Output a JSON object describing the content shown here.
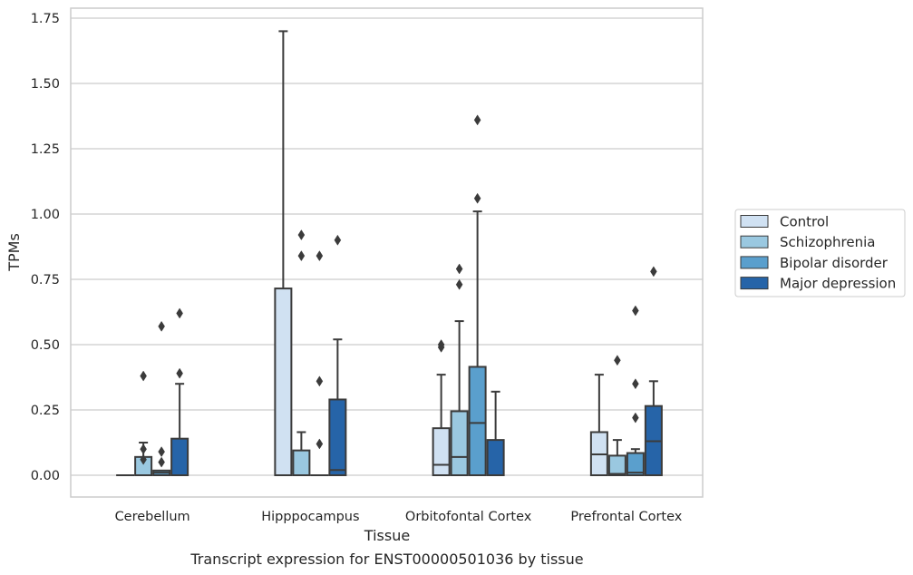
{
  "chart_data": {
    "type": "box",
    "title": "",
    "xlabel": "Tissue",
    "ylabel": "TPMs",
    "caption": "Transcript expression for ENST00000501036 by tissue",
    "ylim": [
      -0.08,
      1.78
    ],
    "yticks": [
      "0.00",
      "0.25",
      "0.50",
      "0.75",
      "1.00",
      "1.25",
      "1.50",
      "1.75"
    ],
    "ytick_values": [
      0,
      0.25,
      0.5,
      0.75,
      1.0,
      1.25,
      1.5,
      1.75
    ],
    "grid": true,
    "legend_position": "right",
    "categories": [
      "Cerebellum",
      "Hipppocampus",
      "Orbitofontal Cortex",
      "Prefrontal Cortex"
    ],
    "series": [
      {
        "name": "Control",
        "color": "#d0e1f2",
        "boxes": [
          {
            "q1": 0,
            "median": 0,
            "q3": 0,
            "whisker_low": 0,
            "whisker_high": 0,
            "outliers": []
          },
          {
            "q1": 0,
            "median": 0,
            "q3": 0.715,
            "whisker_low": 0,
            "whisker_high": 1.7,
            "outliers": []
          },
          {
            "q1": 0,
            "median": 0.04,
            "q3": 0.18,
            "whisker_low": 0,
            "whisker_high": 0.385,
            "outliers": [
              0.49,
              0.5
            ]
          },
          {
            "q1": 0,
            "median": 0.08,
            "q3": 0.165,
            "whisker_low": 0,
            "whisker_high": 0.385,
            "outliers": []
          }
        ]
      },
      {
        "name": "Schizophrenia",
        "color": "#9ac8e0",
        "boxes": [
          {
            "q1": 0,
            "median": 0,
            "q3": 0.07,
            "whisker_low": 0,
            "whisker_high": 0.125,
            "outliers": [
              0.06,
              0.1,
              0.38
            ]
          },
          {
            "q1": 0,
            "median": 0,
            "q3": 0.095,
            "whisker_low": 0,
            "whisker_high": 0.165,
            "outliers": [
              0.84,
              0.92
            ]
          },
          {
            "q1": 0,
            "median": 0.07,
            "q3": 0.245,
            "whisker_low": 0,
            "whisker_high": 0.59,
            "outliers": [
              0.73,
              0.79
            ]
          },
          {
            "q1": 0,
            "median": 0.005,
            "q3": 0.075,
            "whisker_low": 0,
            "whisker_high": 0.135,
            "outliers": [
              0.44
            ]
          }
        ]
      },
      {
        "name": "Bipolar disorder",
        "color": "#5a9fcd",
        "boxes": [
          {
            "q1": 0,
            "median": 0.01,
            "q3": 0.018,
            "whisker_low": 0,
            "whisker_high": 0.018,
            "outliers": [
              0.05,
              0.09,
              0.57
            ]
          },
          {
            "q1": 0,
            "median": 0,
            "q3": 0,
            "whisker_low": 0,
            "whisker_high": 0,
            "outliers": [
              0.12,
              0.36,
              0.84
            ]
          },
          {
            "q1": 0,
            "median": 0.2,
            "q3": 0.415,
            "whisker_low": 0,
            "whisker_high": 1.01,
            "outliers": [
              1.06,
              1.36
            ]
          },
          {
            "q1": 0,
            "median": 0.01,
            "q3": 0.085,
            "whisker_low": 0,
            "whisker_high": 0.1,
            "outliers": [
              0.22,
              0.35,
              0.63
            ]
          }
        ]
      },
      {
        "name": "Major depression",
        "color": "#2664a8",
        "boxes": [
          {
            "q1": 0,
            "median": 0,
            "q3": 0.14,
            "whisker_low": 0,
            "whisker_high": 0.35,
            "outliers": [
              0.39,
              0.62
            ]
          },
          {
            "q1": 0,
            "median": 0.02,
            "q3": 0.29,
            "whisker_low": 0,
            "whisker_high": 0.52,
            "outliers": [
              0.9
            ]
          },
          {
            "q1": 0,
            "median": 0,
            "q3": 0.135,
            "whisker_low": 0,
            "whisker_high": 0.32,
            "outliers": []
          },
          {
            "q1": 0,
            "median": 0.13,
            "q3": 0.265,
            "whisker_low": 0,
            "whisker_high": 0.36,
            "outliers": [
              0.78
            ]
          }
        ]
      }
    ]
  }
}
